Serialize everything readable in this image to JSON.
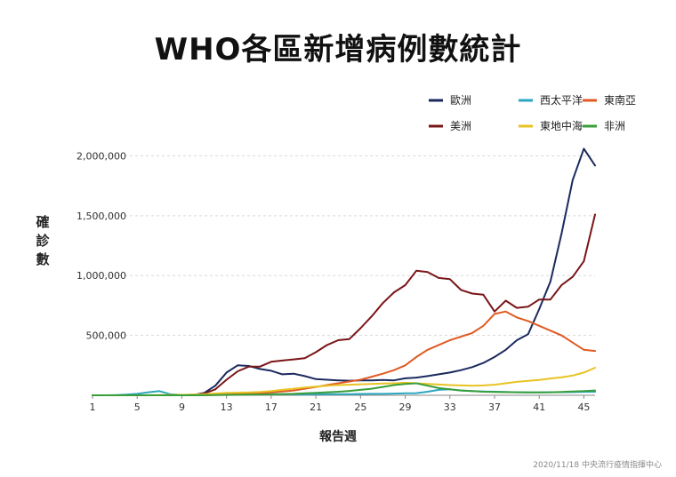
{
  "chart_data": {
    "type": "line",
    "title": "WHO各區新增病例數統計",
    "xlabel": "報告週",
    "ylabel": "確診數",
    "ylim": [
      0,
      2100000
    ],
    "xlim": [
      1,
      46
    ],
    "yticks": [
      500000,
      1000000,
      1500000,
      2000000
    ],
    "ytick_labels": [
      "500,000",
      "1,000,000",
      "1,500,000",
      "2,000,000"
    ],
    "xticks": [
      1,
      5,
      9,
      13,
      17,
      21,
      25,
      29,
      33,
      37,
      41,
      45
    ],
    "xtick_labels": [
      "1",
      "5",
      "9",
      "13",
      "17",
      "21",
      "25",
      "29",
      "33",
      "37",
      "41",
      "45"
    ],
    "grid": "horizontal-dashed",
    "legend_position": "top-right",
    "x": [
      1,
      2,
      3,
      4,
      5,
      6,
      7,
      8,
      9,
      10,
      11,
      12,
      13,
      14,
      15,
      16,
      17,
      18,
      19,
      20,
      21,
      22,
      23,
      24,
      25,
      26,
      27,
      28,
      29,
      30,
      31,
      32,
      33,
      34,
      35,
      36,
      37,
      38,
      39,
      40,
      41,
      42,
      43,
      44,
      45,
      46
    ],
    "series": [
      {
        "name": "歐洲",
        "color": "#1b2a5e",
        "values": [
          0,
          0,
          0,
          0,
          0,
          0,
          0,
          0,
          0,
          2000,
          20000,
          80000,
          190000,
          250000,
          245000,
          220000,
          205000,
          175000,
          180000,
          160000,
          135000,
          130000,
          125000,
          122000,
          125000,
          125000,
          128000,
          125000,
          142000,
          148000,
          160000,
          175000,
          190000,
          210000,
          235000,
          270000,
          320000,
          380000,
          460000,
          510000,
          720000,
          950000,
          1350000,
          1800000,
          2060000,
          1920000
        ]
      },
      {
        "name": "西太平洋",
        "color": "#2aa7c0",
        "values": [
          0,
          0,
          1000,
          5000,
          12000,
          25000,
          35000,
          8000,
          3000,
          5000,
          6000,
          8000,
          8000,
          9000,
          10000,
          9000,
          9000,
          9000,
          8000,
          8000,
          9000,
          9000,
          9000,
          10000,
          11000,
          12000,
          12000,
          14000,
          16000,
          18000,
          30000,
          45000,
          50000,
          40000,
          35000,
          32000,
          30000,
          28000,
          25000,
          24000,
          24000,
          25000,
          26000,
          27000,
          29000,
          30000
        ]
      },
      {
        "name": "東南亞",
        "color": "#e05a24",
        "values": [
          0,
          0,
          0,
          0,
          0,
          0,
          0,
          0,
          0,
          500,
          1000,
          3000,
          5000,
          8000,
          12000,
          18000,
          25000,
          32000,
          40000,
          55000,
          70000,
          85000,
          100000,
          115000,
          130000,
          155000,
          180000,
          210000,
          250000,
          320000,
          380000,
          420000,
          460000,
          490000,
          520000,
          580000,
          680000,
          700000,
          650000,
          620000,
          580000,
          540000,
          500000,
          440000,
          380000,
          370000
        ]
      },
      {
        "name": "美洲",
        "color": "#7a1518",
        "values": [
          0,
          0,
          0,
          0,
          0,
          0,
          0,
          0,
          0,
          500,
          15000,
          50000,
          130000,
          200000,
          240000,
          240000,
          280000,
          290000,
          300000,
          310000,
          360000,
          420000,
          460000,
          470000,
          560000,
          660000,
          770000,
          860000,
          920000,
          1040000,
          1030000,
          980000,
          970000,
          880000,
          850000,
          840000,
          700000,
          790000,
          730000,
          740000,
          800000,
          800000,
          920000,
          990000,
          1120000,
          1510000
        ]
      },
      {
        "name": "東地中海",
        "color": "#e8c324",
        "values": [
          0,
          0,
          0,
          0,
          0,
          1000,
          2000,
          3000,
          4000,
          6000,
          10000,
          15000,
          20000,
          22000,
          24000,
          28000,
          35000,
          45000,
          55000,
          65000,
          72000,
          80000,
          85000,
          88000,
          92000,
          95000,
          98000,
          100000,
          105000,
          100000,
          95000,
          90000,
          85000,
          82000,
          80000,
          82000,
          88000,
          100000,
          112000,
          120000,
          128000,
          140000,
          150000,
          165000,
          190000,
          230000
        ]
      },
      {
        "name": "非洲",
        "color": "#3a9e3a",
        "values": [
          0,
          0,
          0,
          0,
          0,
          0,
          0,
          0,
          0,
          0,
          1000,
          2000,
          3000,
          4000,
          5000,
          6000,
          8000,
          10000,
          12000,
          16000,
          20000,
          25000,
          30000,
          36000,
          45000,
          55000,
          70000,
          85000,
          95000,
          100000,
          80000,
          60000,
          50000,
          40000,
          35000,
          30000,
          28000,
          26000,
          25000,
          24000,
          24000,
          25000,
          28000,
          32000,
          35000,
          40000
        ]
      }
    ]
  },
  "footer_text": "2020/11/18 中央流行疫情指揮中心"
}
